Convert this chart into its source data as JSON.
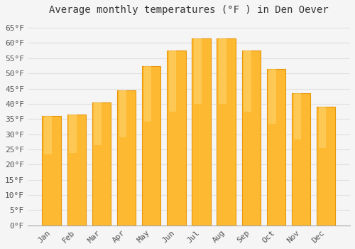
{
  "title": "Average monthly temperatures (°F ) in Den Oever",
  "months": [
    "Jan",
    "Feb",
    "Mar",
    "Apr",
    "May",
    "Jun",
    "Jul",
    "Aug",
    "Sep",
    "Oct",
    "Nov",
    "Dec"
  ],
  "values": [
    36,
    36.5,
    40.5,
    44.5,
    52.5,
    57.5,
    61.5,
    61.5,
    57.5,
    51.5,
    43.5,
    39
  ],
  "bar_color": "#FDB931",
  "bar_edge_color": "#E8960A",
  "background_color": "#F5F5F5",
  "grid_color": "#E0E0E0",
  "title_fontsize": 10,
  "tick_fontsize": 8,
  "yticks": [
    0,
    5,
    10,
    15,
    20,
    25,
    30,
    35,
    40,
    45,
    50,
    55,
    60,
    65
  ],
  "ylim": [
    0,
    68
  ]
}
